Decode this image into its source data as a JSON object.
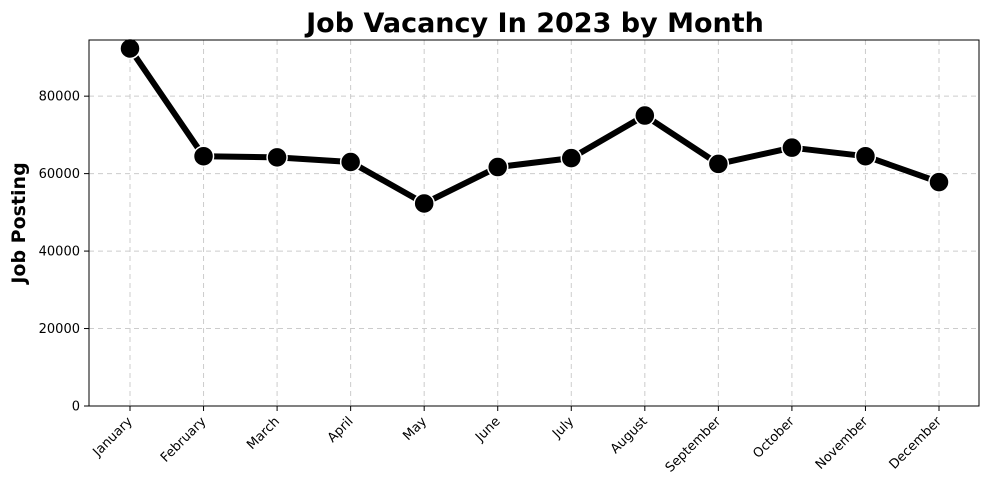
{
  "chart_data": {
    "type": "line",
    "title": "Job Vacancy In 2023 by Month",
    "xlabel": "",
    "ylabel": "Job Posting",
    "categories": [
      "January",
      "February",
      "March",
      "April",
      "May",
      "June",
      "July",
      "August",
      "September",
      "October",
      "November",
      "December"
    ],
    "series": [
      {
        "values": [
          92300,
          64500,
          64200,
          63000,
          52300,
          61700,
          64000,
          75000,
          62500,
          66700,
          64500,
          57800
        ]
      }
    ],
    "ylim": [
      0,
      94500
    ],
    "yticks": [
      "0",
      "20000",
      "40000",
      "60000",
      "80000"
    ],
    "grid": true,
    "legend": "none",
    "line_color": "#000000",
    "marker_color": "#000000"
  }
}
